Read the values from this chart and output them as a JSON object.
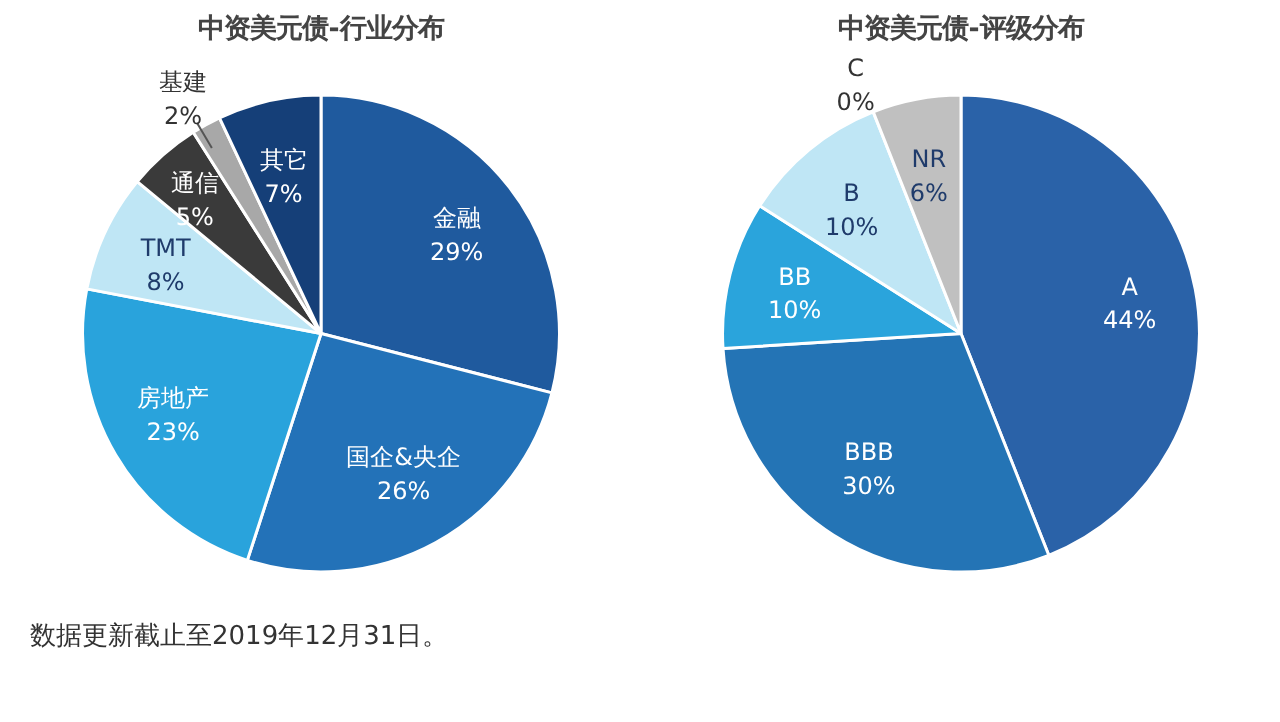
{
  "chart_data": [
    {
      "type": "pie",
      "title": "中资美元债-行业分布",
      "categories": [
        "金融",
        "国企&央企",
        "房地产",
        "TMT",
        "通信",
        "基建",
        "其它"
      ],
      "values": [
        29,
        26,
        23,
        8,
        5,
        2,
        7
      ],
      "colors": [
        "#1f5a9e",
        "#2372b8",
        "#29a3dc",
        "#bfe6f5",
        "#3a3a3a",
        "#a8a8a8",
        "#153f78"
      ],
      "value_labels": [
        "29%",
        "26%",
        "23%",
        "8%",
        "5%",
        "2%",
        "7%"
      ],
      "annotations": [
        "数据更新截止至2019年12月31日。"
      ]
    },
    {
      "type": "pie",
      "title": "中资美元债-评级分布",
      "categories": [
        "A",
        "BBB",
        "BB",
        "B",
        "C",
        "NR"
      ],
      "values": [
        44,
        30,
        10,
        10,
        0,
        6
      ],
      "colors": [
        "#2a62a8",
        "#2474b5",
        "#2aa4dc",
        "#bfe6f5",
        "#ffffff",
        "#c0c0c0"
      ],
      "value_labels": [
        "44%",
        "30%",
        "10%",
        "10%",
        "0%",
        "6%"
      ]
    }
  ]
}
